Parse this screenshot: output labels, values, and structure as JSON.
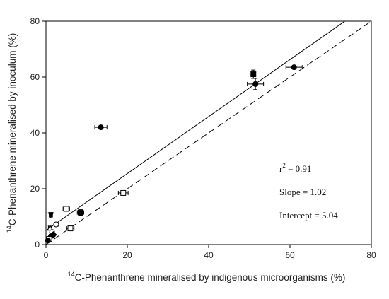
{
  "chart_data": {
    "type": "scatter",
    "xlabel_sup": "14",
    "xlabel": "C-Phenanthrene mineralised by indigenous microorganisms (%)",
    "ylabel_sup": "14",
    "ylabel": "C-Phenanthrene mineralised by inoculum (%)",
    "xlim": [
      0,
      80
    ],
    "ylim": [
      0,
      80
    ],
    "xticks": [
      "0",
      "20",
      "40",
      "60",
      "80"
    ],
    "yticks": [
      "0",
      "20",
      "40",
      "60",
      "80"
    ],
    "grid": false,
    "points": [
      {
        "x": 13.5,
        "y": 42.0,
        "xerr": 1.5,
        "yerr": 0.5,
        "marker": "filled-circle"
      },
      {
        "x": 61.0,
        "y": 63.5,
        "xerr": 2.0,
        "yerr": 0.6,
        "marker": "filled-circle"
      },
      {
        "x": 51.5,
        "y": 57.5,
        "xerr": 2.0,
        "yerr": 2.0,
        "marker": "filled-circle"
      },
      {
        "x": 51.0,
        "y": 61.0,
        "xerr": 0.5,
        "yerr": 1.5,
        "marker": "filled-square"
      },
      {
        "x": 19.0,
        "y": 18.5,
        "xerr": 1.2,
        "yerr": 0.6,
        "marker": "open-square"
      },
      {
        "x": 5.0,
        "y": 12.8,
        "xerr": 0.8,
        "yerr": 0.8,
        "marker": "open-square"
      },
      {
        "x": 8.5,
        "y": 11.5,
        "xerr": 0.8,
        "yerr": 1.0,
        "marker": "filled-square"
      },
      {
        "x": 1.2,
        "y": 10.5,
        "xerr": 0.4,
        "yerr": 1.0,
        "marker": "filled-triangle-down"
      },
      {
        "x": 6.0,
        "y": 5.8,
        "xerr": 0.9,
        "yerr": 0.5,
        "marker": "open-square"
      },
      {
        "x": 2.5,
        "y": 7.2,
        "xerr": 0.5,
        "yerr": 0.5,
        "marker": "open-circle"
      },
      {
        "x": 1.0,
        "y": 6.0,
        "xerr": 0.4,
        "yerr": 0.6,
        "marker": "open-triangle"
      },
      {
        "x": 1.5,
        "y": 4.5,
        "xerr": 0.4,
        "yerr": 0.5,
        "marker": "open-circle"
      },
      {
        "x": 1.8,
        "y": 3.5,
        "xerr": 0.4,
        "yerr": 0.5,
        "marker": "filled-diamond"
      },
      {
        "x": 1.2,
        "y": 3.0,
        "xerr": 0.4,
        "yerr": 0.4,
        "marker": "filled-circle"
      },
      {
        "x": 0.8,
        "y": 2.0,
        "xerr": 0.4,
        "yerr": 0.5,
        "marker": "open-square"
      },
      {
        "x": 0.5,
        "y": 1.5,
        "xerr": 0.3,
        "yerr": 0.4,
        "marker": "filled-circle"
      }
    ],
    "regression_line": {
      "slope": 1.02,
      "intercept": 5.04,
      "style": "solid"
    },
    "reference_line": {
      "slope": 1.0,
      "intercept": 0,
      "style": "dashed"
    },
    "annotations": {
      "r2_base": "r",
      "r2_sup": "2",
      "r2_value": " = 0.91",
      "slope_text": "Slope = 1.02",
      "intercept_text": "Intercept = 5.04"
    }
  }
}
